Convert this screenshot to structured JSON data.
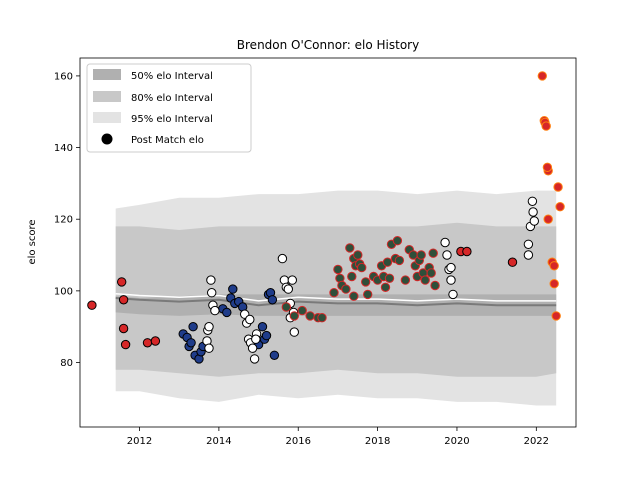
{
  "chart_data": {
    "type": "scatter",
    "title": "Brendon O'Connor: elo History",
    "xlabel": "",
    "ylabel": "elo score",
    "xlim": [
      2010.5,
      2023.0
    ],
    "ylim": [
      62,
      165
    ],
    "x_ticks": [
      2012,
      2014,
      2016,
      2018,
      2020,
      2022
    ],
    "y_ticks": [
      80,
      100,
      120,
      140,
      160
    ],
    "grid": false,
    "legend_position": "top-left",
    "legend": [
      {
        "label": "50% elo Interval",
        "kind": "band",
        "color": "#b0b0b0"
      },
      {
        "label": "80% elo Interval",
        "kind": "band",
        "color": "#c8c8c8"
      },
      {
        "label": "95% elo Interval",
        "kind": "band",
        "color": "#e3e3e3"
      },
      {
        "label": "Post Match elo",
        "kind": "marker",
        "color": "#000000"
      }
    ],
    "bands": {
      "x": [
        2011.4,
        2012,
        2013,
        2014,
        2015,
        2016,
        2017,
        2018,
        2019,
        2020,
        2021,
        2022,
        2022.5
      ],
      "median": [
        98,
        97.5,
        97,
        97.5,
        96,
        97,
        96.5,
        96.5,
        96,
        96.5,
        96,
        96,
        96
      ],
      "i50": [
        [
          94,
          98.5
        ],
        [
          93.5,
          98
        ],
        [
          93,
          98.5
        ],
        [
          93.5,
          99
        ],
        [
          93,
          99
        ],
        [
          93,
          99
        ],
        [
          93,
          99
        ],
        [
          93,
          99
        ],
        [
          93,
          99
        ],
        [
          93,
          99
        ],
        [
          93,
          99
        ],
        [
          93,
          99
        ],
        [
          93,
          99
        ]
      ],
      "i80": [
        [
          78,
          118
        ],
        [
          78,
          118
        ],
        [
          77,
          117
        ],
        [
          76,
          118
        ],
        [
          77,
          118
        ],
        [
          77,
          118
        ],
        [
          78,
          118
        ],
        [
          77,
          118
        ],
        [
          77,
          118
        ],
        [
          76,
          119
        ],
        [
          76,
          118
        ],
        [
          76,
          118
        ],
        [
          77,
          118
        ]
      ],
      "i95": [
        [
          72,
          123
        ],
        [
          72,
          124
        ],
        [
          70,
          126
        ],
        [
          69,
          126
        ],
        [
          71,
          127
        ],
        [
          70,
          127
        ],
        [
          71,
          128
        ],
        [
          70,
          128
        ],
        [
          70,
          127
        ],
        [
          69,
          128
        ],
        [
          69,
          127
        ],
        [
          68,
          128
        ],
        [
          68,
          128
        ]
      ]
    },
    "series": [
      {
        "color": "#d62728",
        "edge": "#000000",
        "points": [
          [
            2010.8,
            96
          ],
          [
            2011.55,
            102.5
          ],
          [
            2011.6,
            97.5
          ],
          [
            2011.6,
            89.5
          ],
          [
            2011.65,
            85
          ],
          [
            2012.2,
            85.5
          ],
          [
            2012.4,
            86
          ],
          [
            2020.1,
            111
          ],
          [
            2020.25,
            111
          ],
          [
            2021.4,
            108
          ]
        ]
      },
      {
        "color": "#1f3c8a",
        "edge": "#000000",
        "points": [
          [
            2013.1,
            88
          ],
          [
            2013.2,
            87
          ],
          [
            2013.25,
            84.5
          ],
          [
            2013.3,
            85.5
          ],
          [
            2013.35,
            90
          ],
          [
            2013.4,
            82
          ],
          [
            2013.5,
            81
          ],
          [
            2013.55,
            83
          ],
          [
            2013.6,
            84.5
          ],
          [
            2014.1,
            95
          ],
          [
            2014.2,
            94
          ],
          [
            2014.3,
            98
          ],
          [
            2014.35,
            100.5
          ],
          [
            2014.4,
            96.5
          ],
          [
            2014.5,
            97
          ],
          [
            2014.6,
            95.5
          ],
          [
            2015.0,
            85
          ],
          [
            2015.1,
            90
          ],
          [
            2015.15,
            86.5
          ],
          [
            2015.2,
            87.5
          ],
          [
            2015.25,
            99
          ],
          [
            2015.3,
            99.5
          ],
          [
            2015.35,
            97.5
          ],
          [
            2015.4,
            82
          ]
        ]
      },
      {
        "color": "#ffffff",
        "edge": "#000000",
        "points": [
          [
            2013.7,
            86
          ],
          [
            2013.72,
            89
          ],
          [
            2013.75,
            90
          ],
          [
            2013.8,
            103
          ],
          [
            2013.82,
            99.5
          ],
          [
            2013.85,
            96
          ],
          [
            2013.9,
            94.5
          ],
          [
            2013.75,
            84
          ],
          [
            2014.65,
            93.5
          ],
          [
            2014.7,
            91
          ],
          [
            2014.75,
            86.5
          ],
          [
            2014.78,
            92
          ],
          [
            2014.8,
            85.5
          ],
          [
            2014.85,
            84
          ],
          [
            2014.9,
            81
          ],
          [
            2014.95,
            88
          ],
          [
            2014.93,
            86.5
          ],
          [
            2015.6,
            109
          ],
          [
            2015.65,
            103
          ],
          [
            2015.7,
            101
          ],
          [
            2015.75,
            100.5
          ],
          [
            2015.8,
            96.5
          ],
          [
            2015.8,
            92.5
          ],
          [
            2015.85,
            103
          ],
          [
            2015.9,
            88.5
          ],
          [
            2015.88,
            94
          ],
          [
            2019.7,
            113.5
          ],
          [
            2019.75,
            110
          ],
          [
            2019.8,
            106
          ],
          [
            2019.85,
            106.5
          ],
          [
            2019.85,
            103
          ],
          [
            2019.9,
            99
          ],
          [
            2021.8,
            113
          ],
          [
            2021.85,
            118
          ],
          [
            2021.9,
            125
          ],
          [
            2021.92,
            122
          ],
          [
            2021.95,
            119.5
          ],
          [
            2021.8,
            110
          ]
        ]
      },
      {
        "color": "#2f4f3a",
        "edge": "#d62728",
        "points": [
          [
            2015.7,
            95.5
          ],
          [
            2015.9,
            93
          ],
          [
            2016.1,
            94.5
          ],
          [
            2016.3,
            93
          ],
          [
            2016.5,
            92.5
          ],
          [
            2016.6,
            92.5
          ],
          [
            2016.9,
            99.5
          ],
          [
            2017.0,
            106
          ],
          [
            2017.05,
            103.5
          ],
          [
            2017.1,
            101.5
          ],
          [
            2017.2,
            100.5
          ],
          [
            2017.3,
            112
          ],
          [
            2017.35,
            104
          ],
          [
            2017.4,
            109
          ],
          [
            2017.45,
            107
          ],
          [
            2017.5,
            110
          ],
          [
            2017.55,
            107.5
          ],
          [
            2017.6,
            106.5
          ],
          [
            2017.7,
            102.5
          ],
          [
            2017.75,
            99
          ],
          [
            2017.4,
            98.5
          ],
          [
            2017.9,
            104
          ],
          [
            2018.0,
            103
          ],
          [
            2018.1,
            107
          ],
          [
            2018.15,
            104
          ],
          [
            2018.2,
            101
          ],
          [
            2018.25,
            108
          ],
          [
            2018.3,
            103.5
          ],
          [
            2018.35,
            113
          ],
          [
            2018.45,
            109
          ],
          [
            2018.5,
            114
          ],
          [
            2018.55,
            108.5
          ],
          [
            2018.7,
            103
          ],
          [
            2018.8,
            111.5
          ],
          [
            2018.9,
            110
          ],
          [
            2018.95,
            107
          ],
          [
            2019.0,
            104
          ],
          [
            2019.05,
            108.5
          ],
          [
            2019.1,
            110
          ],
          [
            2019.15,
            105
          ],
          [
            2019.2,
            103
          ],
          [
            2019.3,
            106.5
          ],
          [
            2019.35,
            105
          ],
          [
            2019.4,
            110.5
          ],
          [
            2019.45,
            101.5
          ]
        ]
      },
      {
        "color": "#d62728",
        "edge": "#ff7f0e",
        "points": [
          [
            2022.15,
            160
          ],
          [
            2022.2,
            147.5
          ],
          [
            2022.22,
            147
          ],
          [
            2022.25,
            146
          ],
          [
            2022.3,
            133.5
          ],
          [
            2022.28,
            134.5
          ],
          [
            2022.3,
            120
          ],
          [
            2022.4,
            108
          ],
          [
            2022.45,
            102
          ],
          [
            2022.45,
            107
          ],
          [
            2022.5,
            93
          ],
          [
            2022.55,
            129
          ],
          [
            2022.6,
            123.5
          ]
        ]
      }
    ]
  }
}
